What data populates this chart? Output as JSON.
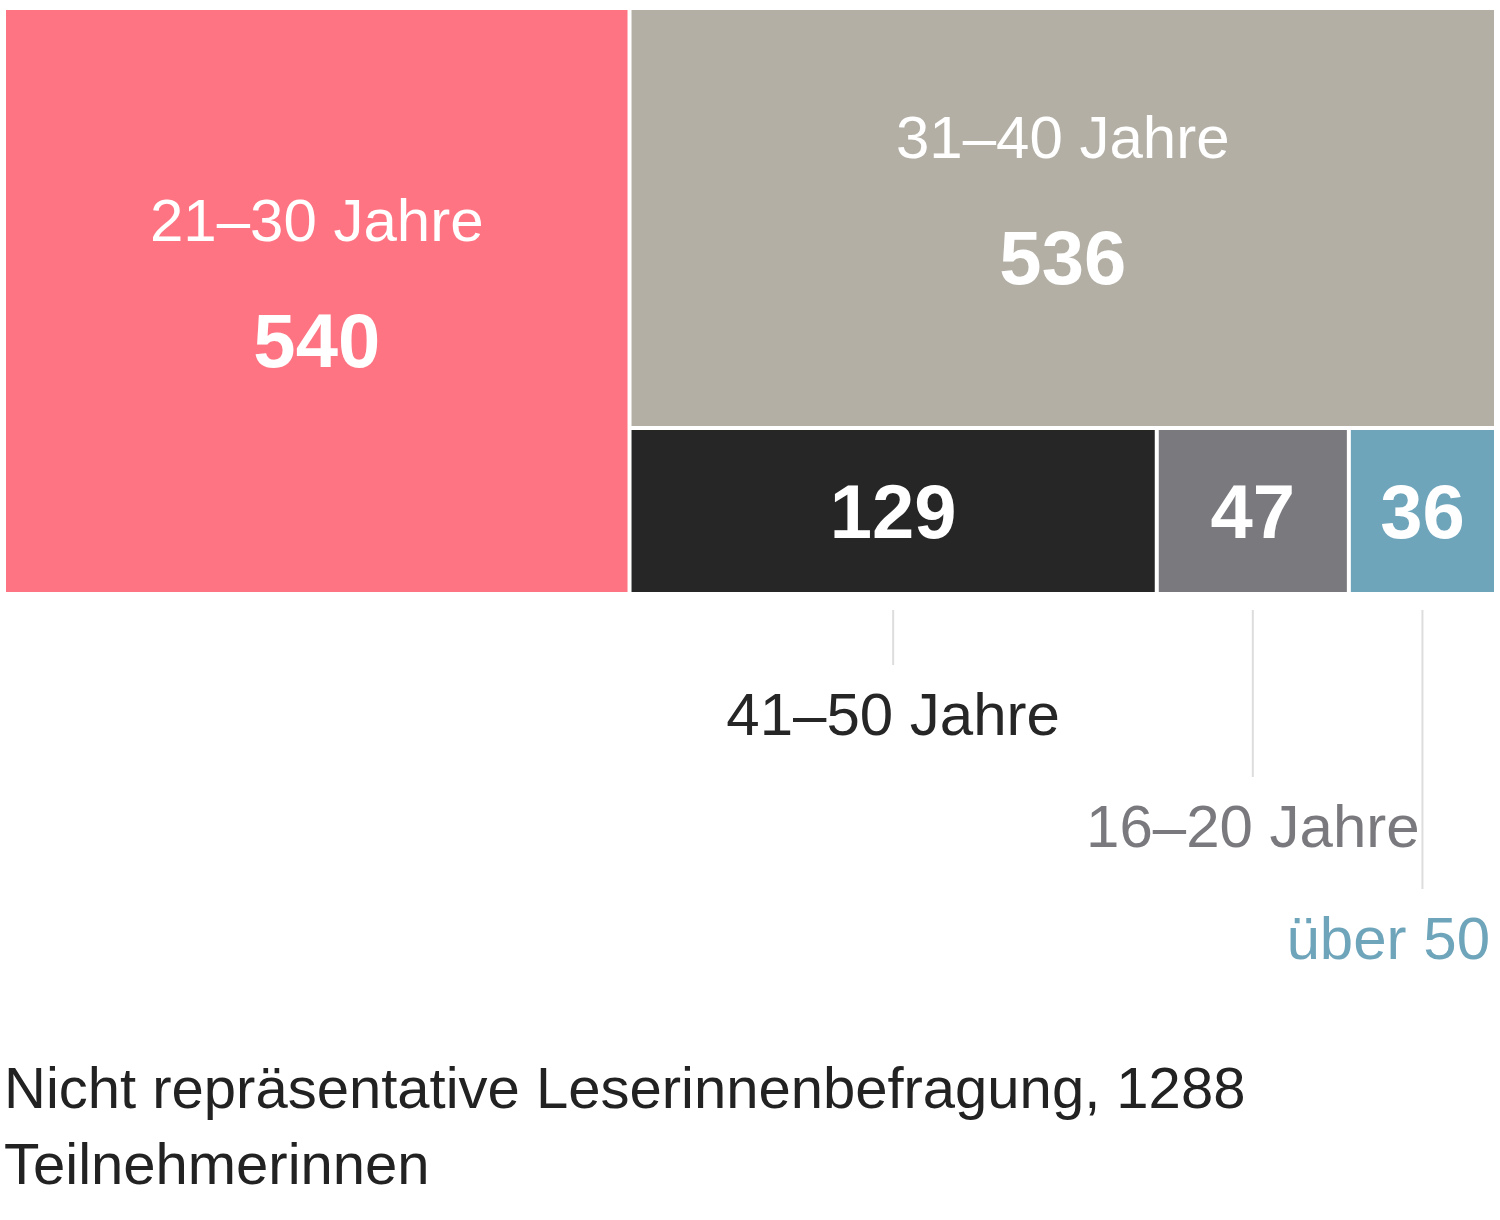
{
  "chart_data": {
    "type": "other",
    "categories": [
      "21–30 Jahre",
      "31–40 Jahre",
      "41–50 Jahre",
      "16–20 Jahre",
      "über 50"
    ],
    "values": [
      540,
      536,
      129,
      47,
      36
    ],
    "colors": [
      "#ff7482",
      "#b3afa5",
      "#262626",
      "#7a797e",
      "#6fa5bb"
    ],
    "data_labels": true,
    "annotations": [
      "Nicht repräsentative Leserinnenbefragung, 1288 Teilnehmerinnen"
    ]
  }
}
